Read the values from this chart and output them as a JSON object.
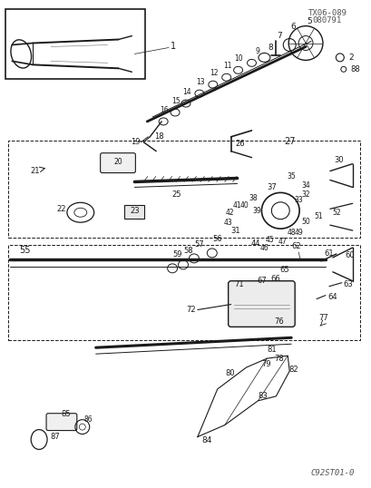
{
  "title": "TX06-089\n080791",
  "catalog_num": "C92ST01-0",
  "bg_color": "#ffffff",
  "fig_width": 4.09,
  "fig_height": 5.38,
  "dpi": 100
}
